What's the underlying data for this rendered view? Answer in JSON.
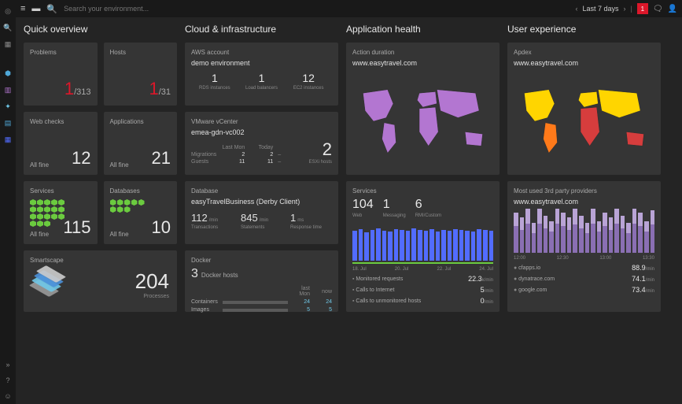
{
  "topbar": {
    "search_placeholder": "Search your environment...",
    "time_range": "Last 7 days",
    "notification_count": "1"
  },
  "sidebar_icons": [
    "target",
    "search",
    "grid",
    "cube",
    "monitor",
    "atom",
    "database",
    "list"
  ],
  "sidebar_bottom_icons": [
    "expand",
    "help",
    "user"
  ],
  "columns": {
    "overview": {
      "title": "Quick overview",
      "problems": {
        "label": "Problems",
        "bad": "1",
        "total": "/313"
      },
      "hosts": {
        "label": "Hosts",
        "bad": "1",
        "total": "/31"
      },
      "webchecks": {
        "label": "Web checks",
        "status": "All fine",
        "value": "12"
      },
      "applications": {
        "label": "Applications",
        "status": "All fine",
        "value": "21"
      },
      "services": {
        "label": "Services",
        "status": "All fine",
        "value": "115",
        "hex_count": 18,
        "hex_color": "#6bcb3f"
      },
      "databases": {
        "label": "Databases",
        "status": "All fine",
        "value": "10",
        "hex_count": 8,
        "hex_color": "#6bcb3f"
      },
      "smartscape": {
        "label": "Smartscape",
        "value": "204",
        "sublabel": "Processes",
        "layer_colors": [
          "#9a9a9a",
          "#6fc8e8",
          "#4a90d9",
          "#cccccc"
        ]
      }
    },
    "cloud": {
      "title": "Cloud & infrastructure",
      "aws": {
        "label": "AWS account",
        "name": "demo environment",
        "stats": [
          {
            "n": "1",
            "l": "RDS instances"
          },
          {
            "n": "1",
            "l": "Load balancers"
          },
          {
            "n": "12",
            "l": "EC2 instances"
          }
        ]
      },
      "vmware": {
        "label": "VMware vCenter",
        "name": "emea-gdn-vc002",
        "columns": [
          "Last Mon",
          "Today"
        ],
        "rows": [
          {
            "l": "Migrations",
            "a": "2",
            "b": "2",
            "trend": "–"
          },
          {
            "l": "Guests",
            "a": "11",
            "b": "11",
            "trend": "–"
          }
        ],
        "big": "2",
        "big_label": "ESXi hosts"
      },
      "database": {
        "label": "Database",
        "name": "easyTravelBusiness (Derby Client)",
        "stats": [
          {
            "n": "112",
            "u": "/min",
            "l": "Transactions"
          },
          {
            "n": "845",
            "u": "/min",
            "l": "Statements"
          },
          {
            "n": "1",
            "u": "ms",
            "l": "Response time"
          }
        ]
      },
      "docker": {
        "label": "Docker",
        "hosts_n": "3",
        "hosts_l": "Docker hosts",
        "columns": [
          "last Mon",
          "now"
        ],
        "rows": [
          {
            "l": "Containers",
            "a": "24",
            "b": "24"
          },
          {
            "l": "Images",
            "a": "5",
            "b": "5"
          }
        ]
      }
    },
    "health": {
      "title": "Application health",
      "action": {
        "label": "Action duration",
        "name": "www.easytravel.com",
        "map_color": "#b376d1"
      },
      "services": {
        "label": "Services",
        "stats": [
          {
            "n": "104",
            "l": "Web"
          },
          {
            "n": "1",
            "l": "Messaging"
          },
          {
            "n": "6",
            "l": "RMI/Custom"
          }
        ],
        "bars": [
          40,
          42,
          38,
          41,
          43,
          40,
          39,
          42,
          41,
          40,
          43,
          41,
          40,
          42,
          39,
          41,
          40,
          42,
          41,
          40,
          39,
          42,
          41,
          40
        ],
        "bar_color": "#526cff",
        "xlabels": [
          "18. Jul",
          "20. Jul",
          "22. Jul",
          "24. Jul"
        ],
        "underline_color": "#6bcb3f"
      },
      "metrics": [
        {
          "icon": "▪",
          "l": "Monitored requests",
          "v": "22.3",
          "u": "k/min"
        },
        {
          "icon": "▪",
          "l": "Calls to Internet",
          "v": "5",
          "u": "/min"
        },
        {
          "icon": "▪",
          "l": "Calls to unmonitored hosts",
          "v": "0",
          "u": "/min"
        }
      ]
    },
    "ux": {
      "title": "User experience",
      "apdex": {
        "label": "Apdex",
        "name": "www.easytravel.com",
        "region_colors": {
          "na": "#ffd500",
          "sa": "#ff7a1a",
          "eu": "#ffd500",
          "af": "#d63d3d",
          "as": "#ffd500",
          "au": "#d63d3d",
          "default": "#ff9933"
        }
      },
      "providers": {
        "label": "Most used 3rd party providers",
        "name": "www.easytravel.com",
        "bars": [
          30,
          26,
          34,
          22,
          38,
          28,
          24,
          36,
          30,
          26,
          40,
          28,
          22,
          34,
          24,
          30,
          26,
          38,
          28,
          22,
          36,
          30,
          24,
          32
        ],
        "bars2": [
          16,
          14,
          18,
          12,
          20,
          14,
          12,
          18,
          16,
          14,
          22,
          14,
          12,
          18,
          12,
          16,
          14,
          20,
          14,
          12,
          18,
          16,
          12,
          16
        ],
        "bar_color": "#8a6fb3",
        "bar_color2": "#b9a4d6",
        "xlabels": [
          "12:00",
          "12:30",
          "13:00",
          "13:30"
        ]
      },
      "metrics": [
        {
          "icon": "●",
          "l": "cfapps.io",
          "v": "88.9",
          "u": "/min"
        },
        {
          "icon": "●",
          "l": "dynatrace.com",
          "v": "74.1",
          "u": "/min"
        },
        {
          "icon": "●",
          "l": "google.com",
          "v": "73.4",
          "u": "/min"
        }
      ]
    }
  }
}
